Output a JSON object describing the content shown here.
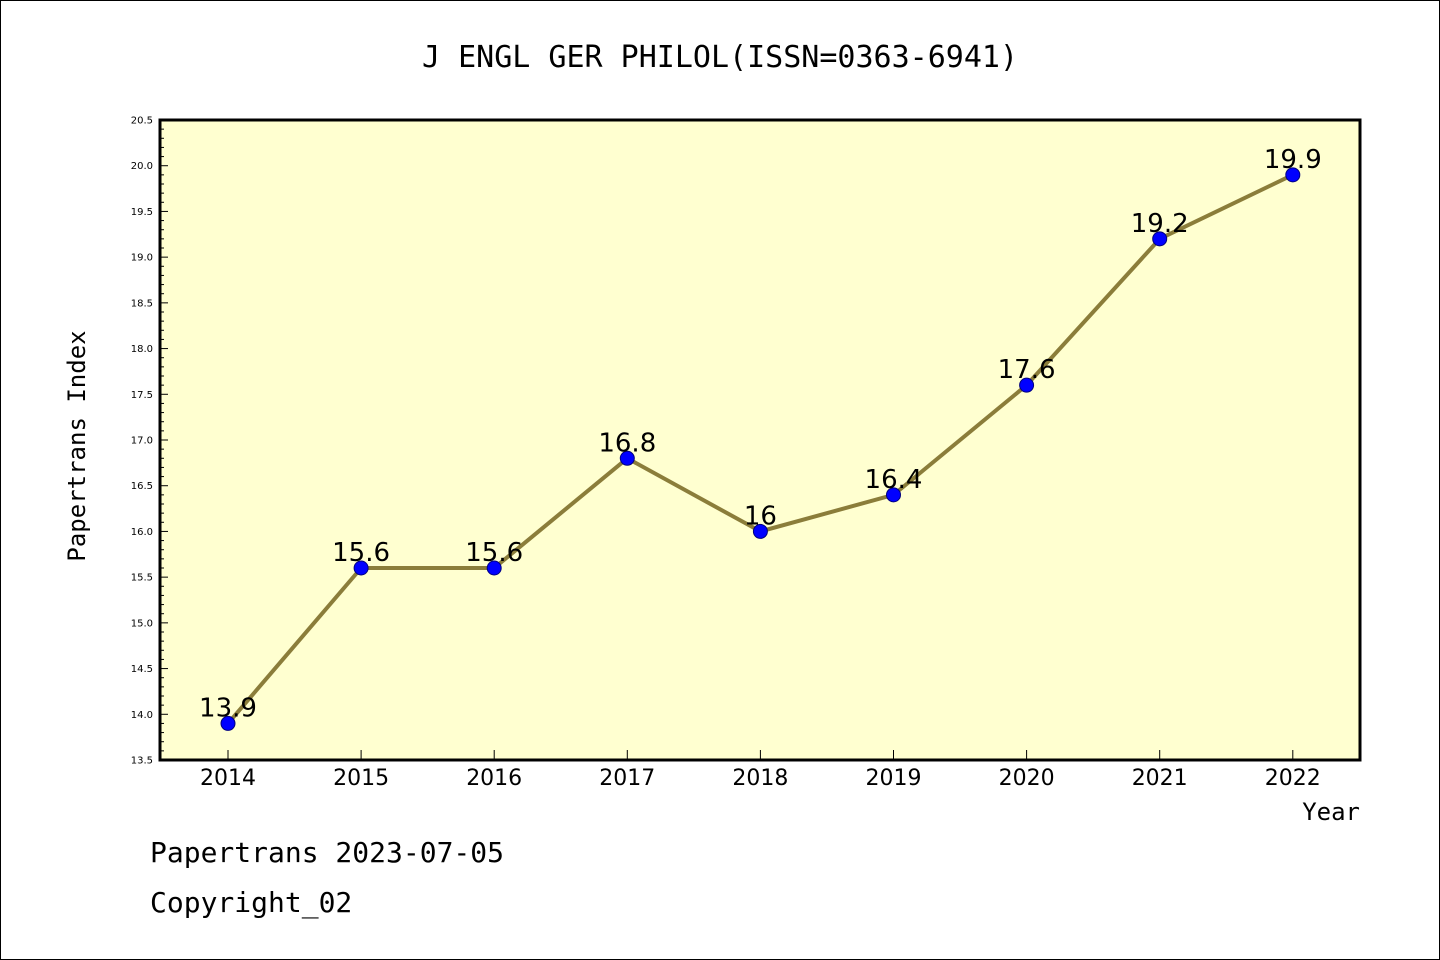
{
  "chart_data": {
    "type": "line",
    "title": "J ENGL GER PHILOL(ISSN=0363-6941)",
    "xlabel": "Year",
    "ylabel": "Papertrans Index",
    "categories": [
      "2014",
      "2015",
      "2016",
      "2017",
      "2018",
      "2019",
      "2020",
      "2021",
      "2022"
    ],
    "series": [
      {
        "values": [
          13.9,
          15.6,
          15.6,
          16.8,
          16.0,
          16.4,
          17.6,
          19.2,
          19.9
        ],
        "labels": [
          "13.9",
          "15.6",
          "15.6",
          "16.8",
          "16",
          "16.4",
          "17.6",
          "19.2",
          "19.9"
        ]
      }
    ],
    "ylim": [
      13.5,
      20.5
    ],
    "yticks": [
      "13.5",
      "14.0",
      "14.5",
      "15.0",
      "15.5",
      "16.0",
      "16.5",
      "17.0",
      "17.5",
      "18.0",
      "18.5",
      "19.0",
      "19.5",
      "20.0",
      "20.5"
    ],
    "grid": false,
    "legend": "none",
    "colors": {
      "plot_background": "#ffffd0",
      "line": "#8b7d3a",
      "marker_fill": "#0000ff",
      "marker_edge": "#000080"
    }
  },
  "footer": {
    "source": "Papertrans 2023-07-05",
    "copyright": "Copyright_02"
  }
}
